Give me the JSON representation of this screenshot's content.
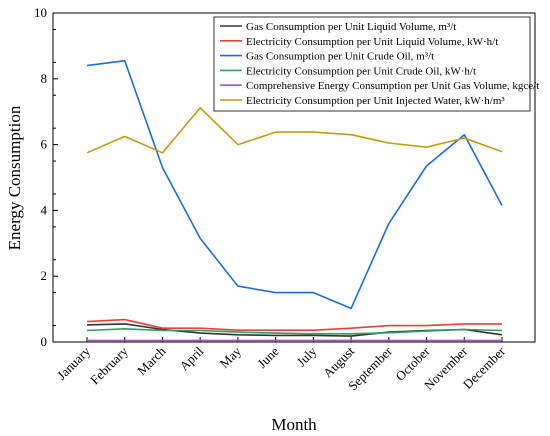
{
  "chart_data": {
    "type": "line",
    "title": "",
    "xlabel": "Month",
    "ylabel": "Energy Consumption",
    "ylim": [
      0,
      10
    ],
    "yticks": [
      0,
      2,
      4,
      6,
      8,
      10
    ],
    "grid": false,
    "legend_position": "top-right",
    "categories": [
      "January",
      "February",
      "March",
      "April",
      "May",
      "June",
      "July",
      "August",
      "September",
      "October",
      "November",
      "December"
    ],
    "series": [
      {
        "name": "Gas Consumption per Unit Liquid Volume, m³/t",
        "color": "#333333",
        "values": [
          0.52,
          0.55,
          0.38,
          0.27,
          0.22,
          0.2,
          0.2,
          0.18,
          0.3,
          0.35,
          0.38,
          0.22
        ]
      },
      {
        "name": "Electricity Consumption per Unit Liquid Volume, kW·h/t",
        "color": "#e8413c",
        "values": [
          0.62,
          0.68,
          0.42,
          0.42,
          0.36,
          0.36,
          0.36,
          0.42,
          0.5,
          0.5,
          0.55,
          0.55
        ]
      },
      {
        "name": "Gas Consumption per Unit Crude Oil, m³/t",
        "color": "#1f6ed4",
        "values": [
          8.4,
          8.55,
          5.3,
          3.15,
          1.7,
          1.5,
          1.5,
          1.02,
          3.6,
          5.35,
          6.3,
          4.15
        ]
      },
      {
        "name": "Electricity Consumption per Unit Crude Oil, kW·h/t",
        "color": "#2ca064",
        "values": [
          0.35,
          0.4,
          0.35,
          0.35,
          0.3,
          0.27,
          0.25,
          0.25,
          0.28,
          0.33,
          0.38,
          0.35
        ]
      },
      {
        "name": "Comprehensive Energy Consumption per Unit Gas Volume, kgce/t",
        "color": "#a05ac8",
        "values": [
          0.05,
          0.05,
          0.05,
          0.05,
          0.05,
          0.05,
          0.05,
          0.05,
          0.05,
          0.05,
          0.05,
          0.05
        ]
      },
      {
        "name": "Electricity Consumption per Unit Injected Water, kW·h/m³",
        "color": "#c99a10",
        "values": [
          5.75,
          6.25,
          5.75,
          7.12,
          6.0,
          6.38,
          6.38,
          6.3,
          6.05,
          5.92,
          6.2,
          5.78
        ]
      }
    ]
  }
}
